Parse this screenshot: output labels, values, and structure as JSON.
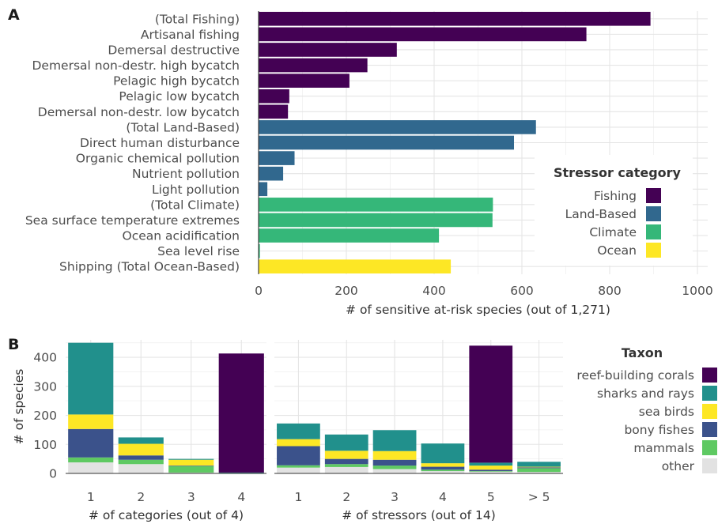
{
  "chart_data": [
    {
      "panel": "A",
      "type": "bar",
      "orientation": "horizontal",
      "xlabel": "# of sensitive at-risk species (out of 1,271)",
      "xlim": [
        0,
        1000
      ],
      "xticks": [
        0,
        200,
        400,
        600,
        800,
        1000
      ],
      "grid": true,
      "bars": [
        {
          "label": "(Total Fishing)",
          "value": 893,
          "category": "Fishing"
        },
        {
          "label": "Artisanal fishing",
          "value": 747,
          "category": "Fishing"
        },
        {
          "label": "Demersal destructive",
          "value": 315,
          "category": "Fishing"
        },
        {
          "label": "Demersal non-destr. high bycatch",
          "value": 248,
          "category": "Fishing"
        },
        {
          "label": "Pelagic high bycatch",
          "value": 207,
          "category": "Fishing"
        },
        {
          "label": "Pelagic low bycatch",
          "value": 70,
          "category": "Fishing"
        },
        {
          "label": "Demersal non-destr. low bycatch",
          "value": 67,
          "category": "Fishing"
        },
        {
          "label": "(Total Land-Based)",
          "value": 632,
          "category": "Land-Based"
        },
        {
          "label": "Direct human disturbance",
          "value": 582,
          "category": "Land-Based"
        },
        {
          "label": "Organic chemical pollution",
          "value": 82,
          "category": "Land-Based"
        },
        {
          "label": "Nutrient pollution",
          "value": 56,
          "category": "Land-Based"
        },
        {
          "label": "Light pollution",
          "value": 20,
          "category": "Land-Based"
        },
        {
          "label": "(Total Climate)",
          "value": 534,
          "category": "Climate"
        },
        {
          "label": "Sea surface temperature extremes",
          "value": 533,
          "category": "Climate"
        },
        {
          "label": "Ocean acidification",
          "value": 411,
          "category": "Climate"
        },
        {
          "label": "Sea level rise",
          "value": 3,
          "category": "Climate"
        },
        {
          "label": "Shipping (Total Ocean-Based)",
          "value": 438,
          "category": "Ocean"
        }
      ],
      "legend": {
        "title": "Stressor category",
        "position": "bottom-right inside",
        "items": [
          {
            "label": "Fishing",
            "color": "#440154"
          },
          {
            "label": "Land-Based",
            "color": "#31688e"
          },
          {
            "label": "Climate",
            "color": "#35b779"
          },
          {
            "label": "Ocean",
            "color": "#fde725"
          }
        ]
      }
    },
    {
      "panel": "B-left",
      "type": "bar",
      "stacked": true,
      "ylabel": "# of species",
      "xlabel": "# of categories (out of 4)",
      "ylim": [
        0,
        460
      ],
      "yticks": [
        0,
        100,
        200,
        300,
        400
      ],
      "categories": [
        "1",
        "2",
        "3",
        "4"
      ],
      "series": [
        {
          "name": "other",
          "values": [
            38,
            32,
            3,
            0
          ]
        },
        {
          "name": "mammals",
          "values": [
            17,
            15,
            22,
            0
          ]
        },
        {
          "name": "bony fishes",
          "values": [
            98,
            15,
            2,
            0
          ]
        },
        {
          "name": "sea birds",
          "values": [
            50,
            40,
            20,
            0
          ]
        },
        {
          "name": "sharks and rays",
          "values": [
            247,
            22,
            3,
            3
          ]
        },
        {
          "name": "reef-building corals",
          "values": [
            0,
            0,
            0,
            410
          ]
        }
      ]
    },
    {
      "panel": "B-right",
      "type": "bar",
      "stacked": true,
      "xlabel": "# of stressors (out of 14)",
      "ylim": [
        0,
        460
      ],
      "categories": [
        "1",
        "2",
        "3",
        "4",
        "5",
        "> 5"
      ],
      "series": [
        {
          "name": "other",
          "values": [
            20,
            22,
            15,
            8,
            6,
            5
          ]
        },
        {
          "name": "mammals",
          "values": [
            8,
            10,
            12,
            5,
            2,
            13
          ]
        },
        {
          "name": "bony fishes",
          "values": [
            66,
            18,
            20,
            10,
            5,
            3
          ]
        },
        {
          "name": "sea birds",
          "values": [
            24,
            28,
            30,
            12,
            14,
            2
          ]
        },
        {
          "name": "sharks and rays",
          "values": [
            54,
            56,
            72,
            68,
            10,
            17
          ]
        },
        {
          "name": "reef-building corals",
          "values": [
            0,
            0,
            0,
            0,
            403,
            0
          ]
        }
      ],
      "legend": {
        "title": "Taxon",
        "position": "right",
        "items": [
          {
            "label": "reef-building corals",
            "color": "#440154"
          },
          {
            "label": "sharks and rays",
            "color": "#21908c"
          },
          {
            "label": "sea birds",
            "color": "#fde725"
          },
          {
            "label": "bony fishes",
            "color": "#3b528b"
          },
          {
            "label": "mammals",
            "color": "#5ec962"
          },
          {
            "label": "other",
            "color": "#e2e2e2"
          }
        ]
      }
    }
  ],
  "labels": {
    "panel_a": "A",
    "panel_b": "B"
  }
}
